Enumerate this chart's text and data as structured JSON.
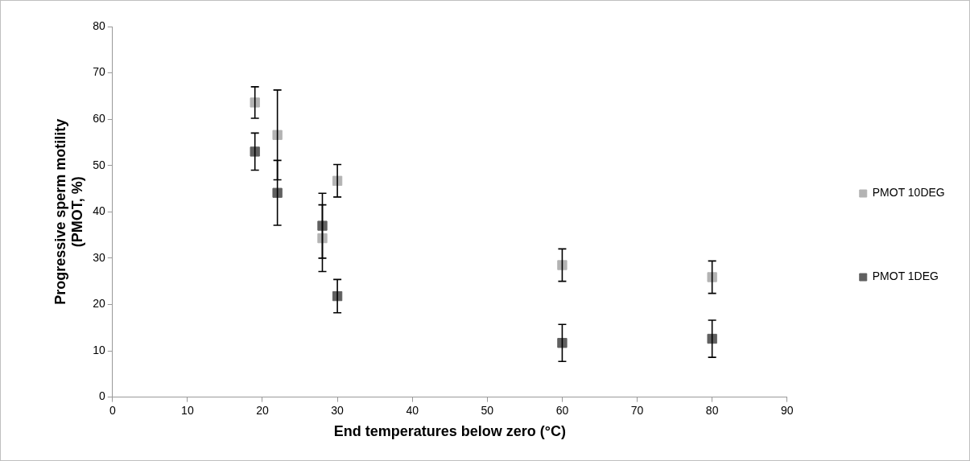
{
  "chart_data": {
    "type": "scatter",
    "xlabel": "End temperatures below zero (°C)",
    "ylabel": "Progressive sperm motility\n(PMOT, %)",
    "xlim": [
      0,
      90
    ],
    "xticks": [
      0,
      10,
      20,
      30,
      40,
      50,
      60,
      70,
      80,
      90
    ],
    "ylim": [
      0,
      80
    ],
    "yticks": [
      0,
      10,
      20,
      30,
      40,
      50,
      60,
      70,
      80
    ],
    "grid": false,
    "legend": "right",
    "marker": "square",
    "series": [
      {
        "name": "PMOT 10DEG",
        "color": "#b3b3b3",
        "x": [
          19,
          22,
          28,
          30,
          60,
          80
        ],
        "values": [
          63.6,
          56.6,
          34.3,
          46.7,
          28.5,
          25.9
        ],
        "errors": [
          3.4,
          9.7,
          7.2,
          3.5,
          3.5,
          3.5
        ]
      },
      {
        "name": "PMOT 1DEG",
        "color": "#606060",
        "x": [
          19,
          22,
          28,
          30,
          60,
          80
        ],
        "values": [
          53.0,
          44.1,
          37.0,
          21.8,
          11.7,
          12.6
        ],
        "errors": [
          4.0,
          7.0,
          7.0,
          3.6,
          4.0,
          4.0
        ]
      }
    ]
  }
}
